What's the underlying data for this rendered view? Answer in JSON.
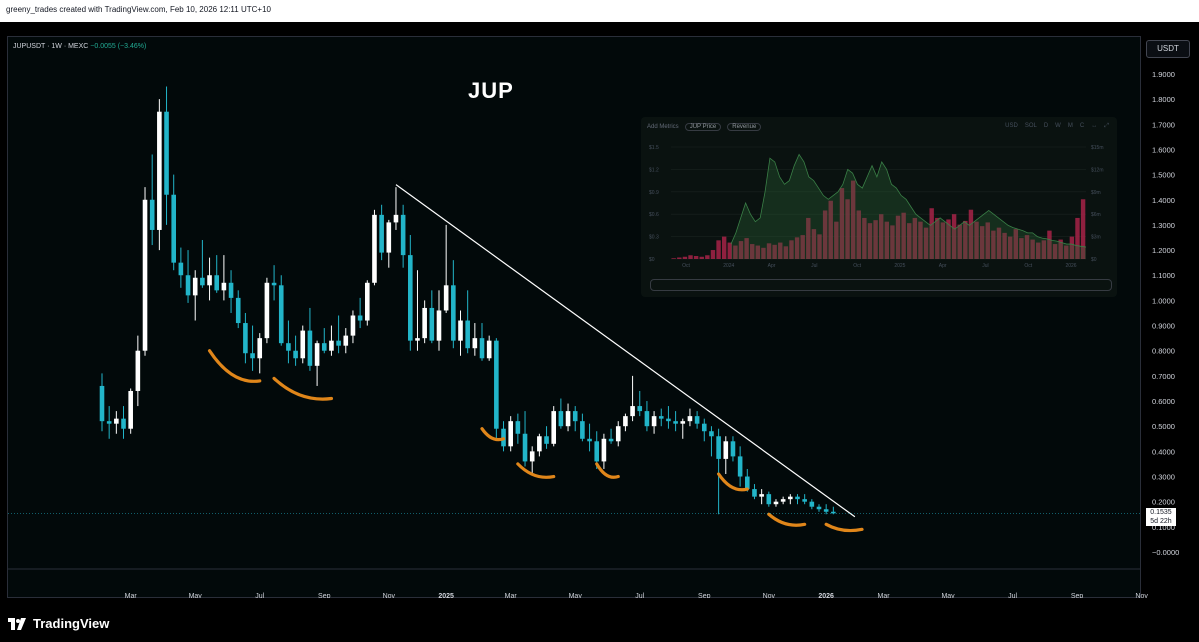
{
  "header": {
    "attribution": "greeny_trades created with TradingView.com, Feb 10, 2026 12:11 UTC+10"
  },
  "symbol": {
    "name": "JUPUSDT · 1W · MEXC",
    "change": "−0.0055 (−3.46%)"
  },
  "title": "JUP",
  "currency": "USDT",
  "price_label": {
    "price": "0.1535",
    "countdown": "5d 22h"
  },
  "brand": {
    "name": "TradingView"
  },
  "colors": {
    "up": "#ffffff",
    "down": "#22b5c9",
    "trendline": "#ffffff",
    "marks": "#e0861a",
    "background": "#02090a"
  },
  "chart_data": {
    "type": "candlestick",
    "interval": "1W",
    "ylim": [
      -0.05,
      1.95
    ],
    "y_ticks": [
      "1.9000",
      "1.8000",
      "1.7000",
      "1.6000",
      "1.5000",
      "1.4000",
      "1.3000",
      "1.2000",
      "1.1000",
      "1.0000",
      "0.9000",
      "0.8000",
      "0.7000",
      "0.6000",
      "0.5000",
      "0.4000",
      "0.3000",
      "0.2000",
      "0.1000",
      "0.0000"
    ],
    "x_ticks": [
      "Mar",
      "May",
      "Jul",
      "Sep",
      "Nov",
      "2025",
      "Mar",
      "May",
      "Jul",
      "Sep",
      "Nov",
      "2026",
      "Mar",
      "May",
      "Jul",
      "Sep",
      "Nov"
    ],
    "x_tick_weeks": [
      4,
      13,
      22,
      31,
      40,
      48,
      57,
      66,
      75,
      84,
      93,
      101,
      109,
      118,
      127,
      136,
      145
    ],
    "candles": [
      [
        0.66,
        0.71,
        0.48,
        0.52
      ],
      [
        0.52,
        0.58,
        0.45,
        0.51
      ],
      [
        0.51,
        0.56,
        0.47,
        0.53
      ],
      [
        0.53,
        0.58,
        0.45,
        0.49
      ],
      [
        0.49,
        0.65,
        0.47,
        0.64
      ],
      [
        0.64,
        0.86,
        0.58,
        0.8
      ],
      [
        0.8,
        1.45,
        0.78,
        1.4
      ],
      [
        1.4,
        1.58,
        1.22,
        1.28
      ],
      [
        1.28,
        1.8,
        1.2,
        1.75
      ],
      [
        1.75,
        1.85,
        1.3,
        1.42
      ],
      [
        1.42,
        1.5,
        1.12,
        1.15
      ],
      [
        1.15,
        1.21,
        1.05,
        1.1
      ],
      [
        1.1,
        1.2,
        0.99,
        1.02
      ],
      [
        1.02,
        1.12,
        0.92,
        1.09
      ],
      [
        1.09,
        1.24,
        1.05,
        1.06
      ],
      [
        1.06,
        1.17,
        1.0,
        1.1
      ],
      [
        1.1,
        1.18,
        1.03,
        1.04
      ],
      [
        1.04,
        1.18,
        1.0,
        1.07
      ],
      [
        1.07,
        1.12,
        0.95,
        1.01
      ],
      [
        1.01,
        1.04,
        0.89,
        0.91
      ],
      [
        0.91,
        0.95,
        0.75,
        0.79
      ],
      [
        0.79,
        0.9,
        0.72,
        0.77
      ],
      [
        0.77,
        0.87,
        0.71,
        0.85
      ],
      [
        0.85,
        1.09,
        0.83,
        1.07
      ],
      [
        1.07,
        1.14,
        1.0,
        1.06
      ],
      [
        1.06,
        1.1,
        0.82,
        0.83
      ],
      [
        0.83,
        0.92,
        0.75,
        0.8
      ],
      [
        0.8,
        0.86,
        0.74,
        0.77
      ],
      [
        0.77,
        0.9,
        0.75,
        0.88
      ],
      [
        0.88,
        0.97,
        0.72,
        0.74
      ],
      [
        0.74,
        0.84,
        0.66,
        0.83
      ],
      [
        0.83,
        0.89,
        0.79,
        0.8
      ],
      [
        0.8,
        0.9,
        0.78,
        0.84
      ],
      [
        0.84,
        0.94,
        0.79,
        0.82
      ],
      [
        0.82,
        0.89,
        0.79,
        0.86
      ],
      [
        0.86,
        0.96,
        0.83,
        0.94
      ],
      [
        0.94,
        1.01,
        0.89,
        0.92
      ],
      [
        0.92,
        1.08,
        0.9,
        1.07
      ],
      [
        1.07,
        1.36,
        1.06,
        1.34
      ],
      [
        1.34,
        1.38,
        1.16,
        1.19
      ],
      [
        1.19,
        1.32,
        1.13,
        1.31
      ],
      [
        1.31,
        1.45,
        1.28,
        1.34
      ],
      [
        1.34,
        1.38,
        1.13,
        1.18
      ],
      [
        1.18,
        1.26,
        0.8,
        0.84
      ],
      [
        0.84,
        1.12,
        0.8,
        0.85
      ],
      [
        0.85,
        1.0,
        0.83,
        0.97
      ],
      [
        0.97,
        1.04,
        0.83,
        0.84
      ],
      [
        0.84,
        1.04,
        0.8,
        0.96
      ],
      [
        0.96,
        1.3,
        0.95,
        1.06
      ],
      [
        1.06,
        1.16,
        0.81,
        0.84
      ],
      [
        0.84,
        0.96,
        0.78,
        0.92
      ],
      [
        0.92,
        1.04,
        0.79,
        0.81
      ],
      [
        0.81,
        0.91,
        0.78,
        0.85
      ],
      [
        0.85,
        0.91,
        0.76,
        0.77
      ],
      [
        0.77,
        0.86,
        0.76,
        0.84
      ],
      [
        0.84,
        0.85,
        0.45,
        0.49
      ],
      [
        0.49,
        0.52,
        0.4,
        0.42
      ],
      [
        0.42,
        0.54,
        0.4,
        0.52
      ],
      [
        0.52,
        0.55,
        0.43,
        0.47
      ],
      [
        0.47,
        0.56,
        0.34,
        0.36
      ],
      [
        0.36,
        0.42,
        0.31,
        0.4
      ],
      [
        0.4,
        0.47,
        0.38,
        0.46
      ],
      [
        0.46,
        0.5,
        0.41,
        0.43
      ],
      [
        0.43,
        0.58,
        0.42,
        0.56
      ],
      [
        0.56,
        0.61,
        0.49,
        0.5
      ],
      [
        0.5,
        0.59,
        0.48,
        0.56
      ],
      [
        0.56,
        0.58,
        0.48,
        0.52
      ],
      [
        0.52,
        0.55,
        0.44,
        0.45
      ],
      [
        0.45,
        0.51,
        0.4,
        0.44
      ],
      [
        0.44,
        0.48,
        0.33,
        0.36
      ],
      [
        0.36,
        0.47,
        0.33,
        0.45
      ],
      [
        0.45,
        0.49,
        0.43,
        0.44
      ],
      [
        0.44,
        0.52,
        0.42,
        0.5
      ],
      [
        0.5,
        0.55,
        0.48,
        0.54
      ],
      [
        0.54,
        0.7,
        0.52,
        0.58
      ],
      [
        0.58,
        0.64,
        0.54,
        0.56
      ],
      [
        0.56,
        0.6,
        0.48,
        0.5
      ],
      [
        0.5,
        0.56,
        0.47,
        0.54
      ],
      [
        0.54,
        0.57,
        0.5,
        0.53
      ],
      [
        0.53,
        0.58,
        0.49,
        0.52
      ],
      [
        0.52,
        0.56,
        0.48,
        0.51
      ],
      [
        0.51,
        0.53,
        0.45,
        0.52
      ],
      [
        0.52,
        0.57,
        0.5,
        0.54
      ],
      [
        0.54,
        0.56,
        0.49,
        0.51
      ],
      [
        0.51,
        0.53,
        0.44,
        0.48
      ],
      [
        0.48,
        0.5,
        0.38,
        0.46
      ],
      [
        0.46,
        0.49,
        0.15,
        0.37
      ],
      [
        0.37,
        0.46,
        0.31,
        0.44
      ],
      [
        0.44,
        0.46,
        0.36,
        0.38
      ],
      [
        0.38,
        0.42,
        0.26,
        0.3
      ],
      [
        0.3,
        0.33,
        0.24,
        0.25
      ],
      [
        0.25,
        0.27,
        0.21,
        0.22
      ],
      [
        0.22,
        0.25,
        0.19,
        0.23
      ],
      [
        0.23,
        0.24,
        0.18,
        0.19
      ],
      [
        0.19,
        0.21,
        0.18,
        0.2
      ],
      [
        0.2,
        0.22,
        0.19,
        0.21
      ],
      [
        0.21,
        0.23,
        0.19,
        0.22
      ],
      [
        0.22,
        0.23,
        0.19,
        0.21
      ],
      [
        0.21,
        0.23,
        0.19,
        0.2
      ],
      [
        0.2,
        0.21,
        0.17,
        0.18
      ],
      [
        0.18,
        0.19,
        0.16,
        0.17
      ],
      [
        0.17,
        0.19,
        0.15,
        0.16
      ],
      [
        0.16,
        0.18,
        0.15,
        0.1535
      ]
    ],
    "trendline": {
      "from": {
        "week": 41,
        "price": 1.46
      },
      "to": {
        "week": 105,
        "price": 0.14
      }
    },
    "support_marks": [
      {
        "from_week": 15,
        "to_week": 22,
        "from_price": 0.8,
        "to_price": 0.68
      },
      {
        "from_week": 24,
        "to_week": 32,
        "from_price": 0.69,
        "to_price": 0.61
      },
      {
        "from_week": 53,
        "to_week": 56,
        "from_price": 0.49,
        "to_price": 0.45
      },
      {
        "from_week": 58,
        "to_week": 63,
        "from_price": 0.35,
        "to_price": 0.3
      },
      {
        "from_week": 69,
        "to_week": 72,
        "from_price": 0.35,
        "to_price": 0.3
      },
      {
        "from_week": 86,
        "to_week": 90,
        "from_price": 0.31,
        "to_price": 0.25
      },
      {
        "from_week": 93,
        "to_week": 98,
        "from_price": 0.15,
        "to_price": 0.11
      },
      {
        "from_week": 101,
        "to_week": 106,
        "from_price": 0.11,
        "to_price": 0.09
      }
    ]
  },
  "inset": {
    "add_metrics": "Add Metrics",
    "metric_1": "JUP Price",
    "metric_2": "Revenue",
    "controls": [
      "USD",
      "SOL",
      "D",
      "W",
      "M",
      "C",
      "↔",
      "⤢"
    ],
    "left_axis": [
      "$1.5",
      "$1.2",
      "$0.9",
      "$0.6",
      "$0.3",
      "$0"
    ],
    "right_axis": [
      "$15m",
      "$12m",
      "$9m",
      "$6m",
      "$3m",
      "$0"
    ],
    "x_axis": [
      "Oct",
      "2024",
      "Apr",
      "Jul",
      "Oct",
      "2025",
      "Apr",
      "Jul",
      "Oct",
      "2026"
    ],
    "price_line": [
      0.2,
      0.35,
      0.55,
      0.75,
      0.6,
      0.5,
      0.55,
      0.9,
      1.35,
      1.3,
      1.1,
      1.0,
      1.05,
      1.25,
      1.4,
      1.3,
      1.1,
      1.05,
      0.95,
      0.85,
      0.8,
      0.85,
      0.9,
      1.0,
      1.2,
      1.15,
      1.0,
      0.95,
      1.1,
      1.25,
      1.1,
      1.3,
      1.2,
      1.0,
      0.95,
      0.85,
      0.8,
      0.7,
      0.6,
      0.55,
      0.5,
      0.45,
      0.5,
      0.55,
      0.5,
      0.45,
      0.4,
      0.45,
      0.5,
      0.45,
      0.5,
      0.55,
      0.6,
      0.65,
      0.6,
      0.55,
      0.5,
      0.45,
      0.42,
      0.4,
      0.38,
      0.35,
      0.35,
      0.3,
      0.28,
      0.27,
      0.25,
      0.24,
      0.22,
      0.2,
      0.2,
      0.18,
      0.17,
      0.16
    ],
    "revenue_bars": [
      0.1,
      0.2,
      0.3,
      0.5,
      0.4,
      0.3,
      0.5,
      1.2,
      2.5,
      3.0,
      2.2,
      1.8,
      2.4,
      2.8,
      2.0,
      1.8,
      1.5,
      2.1,
      1.9,
      2.2,
      1.7,
      2.5,
      2.9,
      3.2,
      5.5,
      4.0,
      3.3,
      6.5,
      7.8,
      5.0,
      9.5,
      8.0,
      10.5,
      6.5,
      5.5,
      4.8,
      5.2,
      6.0,
      5.0,
      4.5,
      5.8,
      6.2,
      4.8,
      5.5,
      5.0,
      4.2,
      6.8,
      5.5,
      4.9,
      5.3,
      6.0,
      4.6,
      5.1,
      6.6,
      5.0,
      4.4,
      4.9,
      3.8,
      4.2,
      3.5,
      3.0,
      4.0,
      2.8,
      3.2,
      2.6,
      2.2,
      2.5,
      3.8,
      2.0,
      2.6,
      1.8,
      3.0,
      5.5,
      8.0
    ]
  }
}
